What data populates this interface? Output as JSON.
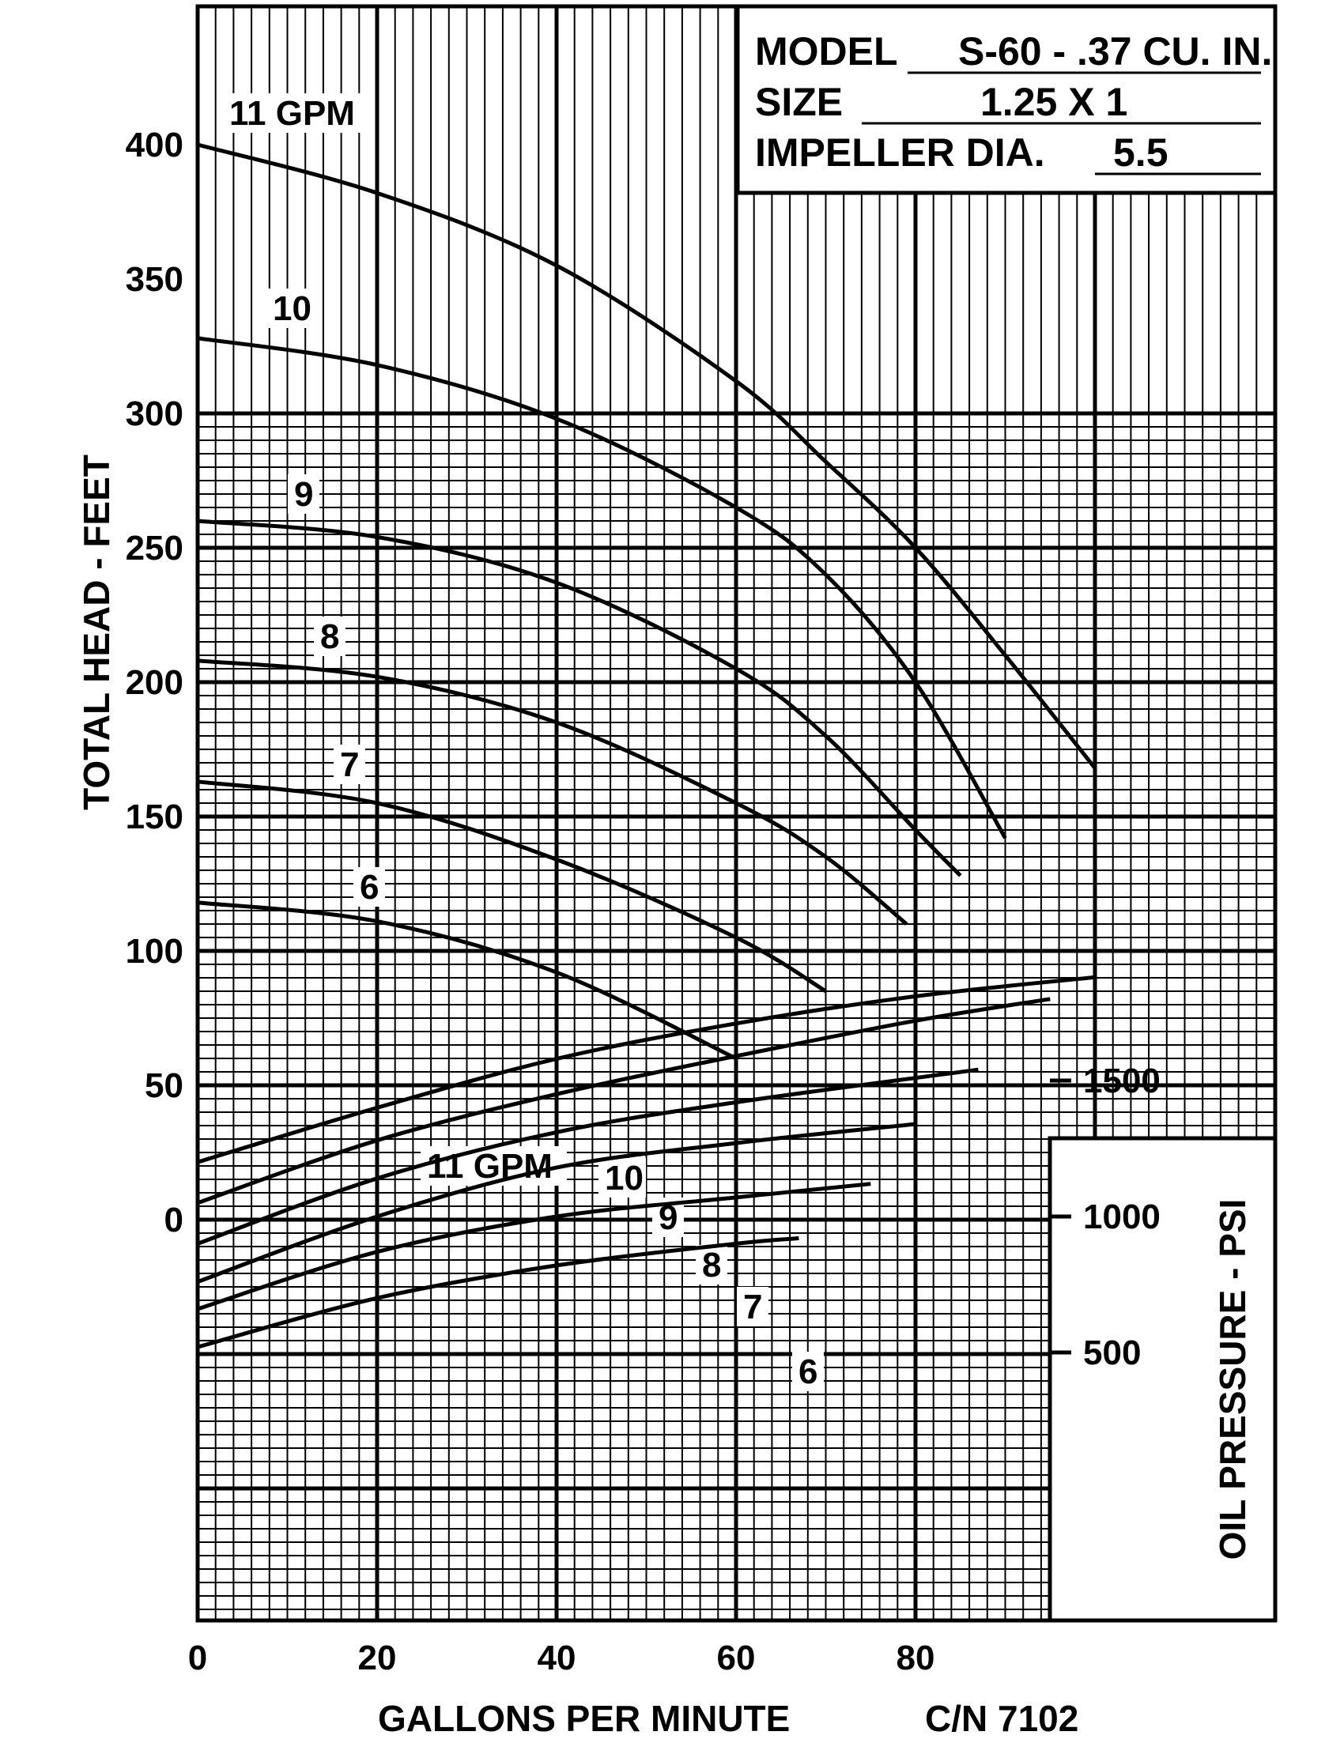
{
  "chart_data": {
    "type": "line",
    "model_label": "MODEL",
    "model_value": "S-60 - .37 CU. IN.",
    "size_label": "SIZE",
    "size_value": "1.25 X 1",
    "impeller_label": "IMPELLER DIA.",
    "impeller_value": "5.5",
    "xlabel": "GALLONS PER MINUTE",
    "part_number": "C/N 7102",
    "ylabel": "TOTAL HEAD - FEET",
    "y2label": "OIL PRESSURE - PSI",
    "xlim": [
      0,
      120
    ],
    "ylim": [
      -150,
      400
    ],
    "x_ticks": [
      0,
      20,
      40,
      60,
      80
    ],
    "y_ticks": [
      0,
      50,
      100,
      150,
      200,
      250,
      300,
      350,
      400
    ],
    "y2_ticks": [
      500,
      1000,
      1500
    ],
    "head_curves": [
      {
        "name": "11 GPM",
        "points": [
          [
            0,
            400
          ],
          [
            20,
            382
          ],
          [
            40,
            355
          ],
          [
            60,
            312
          ],
          [
            70,
            282
          ],
          [
            80,
            250
          ],
          [
            90,
            210
          ],
          [
            100,
            168
          ]
        ]
      },
      {
        "name": "10",
        "points": [
          [
            0,
            328
          ],
          [
            20,
            318
          ],
          [
            40,
            298
          ],
          [
            60,
            265
          ],
          [
            70,
            240
          ],
          [
            80,
            200
          ],
          [
            90,
            142
          ]
        ]
      },
      {
        "name": "9",
        "points": [
          [
            0,
            260
          ],
          [
            20,
            254
          ],
          [
            40,
            237
          ],
          [
            60,
            205
          ],
          [
            70,
            180
          ],
          [
            80,
            145
          ],
          [
            85,
            128
          ]
        ]
      },
      {
        "name": "8",
        "points": [
          [
            0,
            208
          ],
          [
            20,
            202
          ],
          [
            40,
            185
          ],
          [
            60,
            155
          ],
          [
            70,
            135
          ],
          [
            79,
            110
          ]
        ]
      },
      {
        "name": "7",
        "points": [
          [
            0,
            163
          ],
          [
            20,
            155
          ],
          [
            40,
            134
          ],
          [
            60,
            105
          ],
          [
            70,
            85
          ]
        ]
      },
      {
        "name": "6",
        "points": [
          [
            0,
            118
          ],
          [
            20,
            111
          ],
          [
            40,
            92
          ],
          [
            60,
            60
          ]
        ]
      }
    ],
    "pressure_curves": [
      {
        "name": "11 GPM",
        "points": [
          [
            0,
            1200
          ],
          [
            20,
            1400
          ],
          [
            40,
            1580
          ],
          [
            60,
            1710
          ],
          [
            80,
            1810
          ],
          [
            100,
            1880
          ]
        ]
      },
      {
        "name": "10",
        "points": [
          [
            0,
            1050
          ],
          [
            20,
            1280
          ],
          [
            40,
            1450
          ],
          [
            60,
            1590
          ],
          [
            80,
            1720
          ],
          [
            95,
            1800
          ]
        ]
      },
      {
        "name": "9",
        "points": [
          [
            0,
            900
          ],
          [
            20,
            1140
          ],
          [
            40,
            1310
          ],
          [
            60,
            1420
          ],
          [
            87,
            1540
          ]
        ]
      },
      {
        "name": "8",
        "points": [
          [
            0,
            760
          ],
          [
            20,
            1000
          ],
          [
            40,
            1180
          ],
          [
            60,
            1270
          ],
          [
            80,
            1340
          ]
        ]
      },
      {
        "name": "7",
        "points": [
          [
            0,
            660
          ],
          [
            20,
            870
          ],
          [
            40,
            1000
          ],
          [
            60,
            1070
          ],
          [
            75,
            1120
          ]
        ]
      },
      {
        "name": "6",
        "points": [
          [
            0,
            520
          ],
          [
            20,
            700
          ],
          [
            40,
            820
          ],
          [
            60,
            900
          ],
          [
            67,
            920
          ]
        ]
      }
    ]
  }
}
